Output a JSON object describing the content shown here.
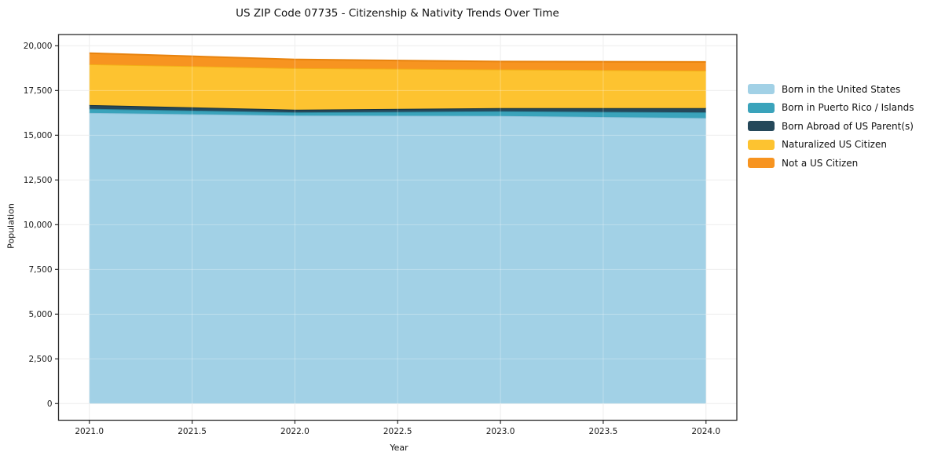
{
  "chart_data": {
    "type": "area",
    "stacked": true,
    "title": "US ZIP Code 07735 - Citizenship & Nativity Trends Over Time",
    "xlabel": "Year",
    "ylabel": "Population",
    "x": [
      2021,
      2022,
      2023,
      2024
    ],
    "series": [
      {
        "name": "Born in the United States",
        "color": "#a2d1e6",
        "edge_color": "#8ec2da",
        "values": [
          16250,
          16100,
          16080,
          15960
        ]
      },
      {
        "name": "Born in Puerto Rico / Islands",
        "color": "#3aa3bb",
        "edge_color": "#2e8aa0",
        "values": [
          230,
          180,
          260,
          320
        ]
      },
      {
        "name": "Born Abroad of US Parent(s)",
        "color": "#25485a",
        "edge_color": "#16323f",
        "values": [
          210,
          150,
          180,
          240
        ]
      },
      {
        "name": "Naturalized US Citizen",
        "color": "#fdc330",
        "edge_color": "#f2af16",
        "values": [
          2280,
          2320,
          2160,
          2090
        ]
      },
      {
        "name": "Not a US Citizen",
        "color": "#f79420",
        "edge_color": "#e8830e",
        "values": [
          620,
          490,
          440,
          490
        ]
      }
    ],
    "totals": [
      19590,
      19240,
      19120,
      19100
    ],
    "xlim": [
      2020.85,
      2024.15
    ],
    "ylim": [
      -930,
      20630
    ],
    "xticks": [
      2021.0,
      2021.5,
      2022.0,
      2022.5,
      2023.0,
      2023.5,
      2024.0
    ],
    "xtick_labels": [
      "2021.0",
      "2021.5",
      "2022.0",
      "2022.5",
      "2023.0",
      "2023.5",
      "2024.0"
    ],
    "yticks": [
      0,
      2500,
      5000,
      7500,
      10000,
      12500,
      15000,
      17500,
      20000
    ],
    "ytick_labels": [
      "0",
      "2,500",
      "5,000",
      "7,500",
      "10,000",
      "12,500",
      "15,000",
      "17,500",
      "20,000"
    ],
    "grid": true,
    "grid_color": "#e7e7e7",
    "spine_color": "#2b2b2b",
    "legend_position": "right-outside"
  }
}
